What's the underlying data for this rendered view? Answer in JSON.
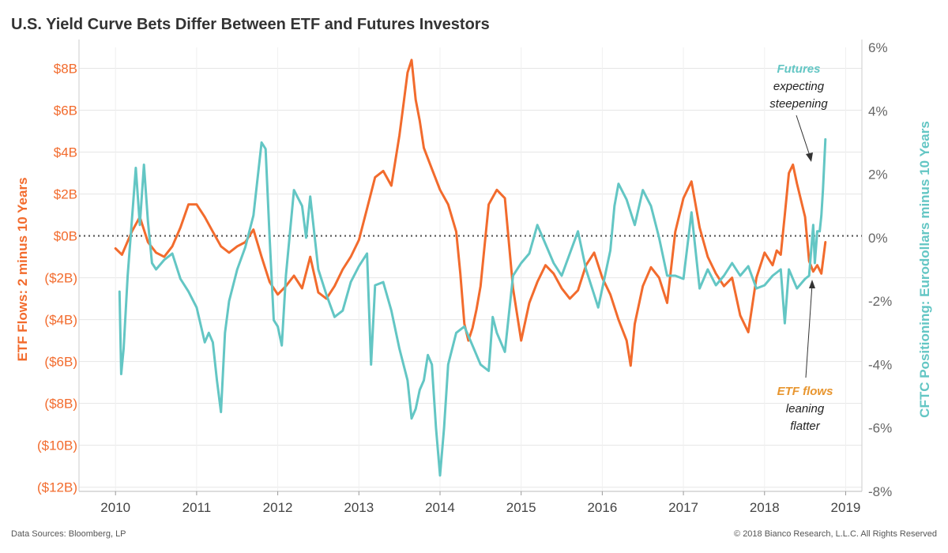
{
  "title": "U.S. Yield Curve Bets Differ Between ETF and Futures Investors",
  "footer": {
    "sources": "Data Sources: Bloomberg, LP",
    "copyright": "© 2018 Bianco Research, L.L.C. All Rights Reserved"
  },
  "colors": {
    "etf": "#f26b2d",
    "futures": "#63c6c4",
    "zero_line": "#555555",
    "grid": "#e6e6e6"
  },
  "chart_data": {
    "type": "line",
    "title": "U.S. Yield Curve Bets Differ Between ETF and Futures Investors",
    "xlabel": "",
    "ylabel_left": "ETF Flows: 2 minus 10 Years",
    "ylabel_right": "CFTC Positioning: Eurodollars minus 10 Years",
    "x_ticks": [
      "2010",
      "2011",
      "2012",
      "2013",
      "2014",
      "2015",
      "2016",
      "2017",
      "2018",
      "2019"
    ],
    "xlim": [
      2009.55,
      2019.2
    ],
    "ylim_left": [
      -12.2,
      9.0
    ],
    "ylim_right": [
      -8.0,
      6.0
    ],
    "left_ticks": [
      {
        "v": 8,
        "label": "$8B"
      },
      {
        "v": 6,
        "label": "$6B"
      },
      {
        "v": 4,
        "label": "$4B"
      },
      {
        "v": 2,
        "label": "$2B"
      },
      {
        "v": 0,
        "label": "$0B"
      },
      {
        "v": -2,
        "label": "($2B)"
      },
      {
        "v": -4,
        "label": "($4B)"
      },
      {
        "v": -6,
        "label": "($6B)"
      },
      {
        "v": -8,
        "label": "($8B)"
      },
      {
        "v": -10,
        "label": "($10B)"
      },
      {
        "v": -12,
        "label": "($12B)"
      }
    ],
    "right_ticks": [
      {
        "v": 6,
        "label": "6%"
      },
      {
        "v": 4,
        "label": "4%"
      },
      {
        "v": 2,
        "label": "2%"
      },
      {
        "v": 0,
        "label": "0%"
      },
      {
        "v": -2,
        "label": "-2%"
      },
      {
        "v": -4,
        "label": "-4%"
      },
      {
        "v": -6,
        "label": "-6%"
      },
      {
        "v": -8,
        "label": "-8%"
      }
    ],
    "grid": true,
    "series": [
      {
        "name": "ETF flows",
        "axis": "left",
        "x": [
          2010.0,
          2010.08,
          2010.2,
          2010.3,
          2010.4,
          2010.5,
          2010.6,
          2010.7,
          2010.8,
          2010.9,
          2011.0,
          2011.1,
          2011.2,
          2011.3,
          2011.4,
          2011.5,
          2011.6,
          2011.7,
          2011.8,
          2011.9,
          2012.0,
          2012.1,
          2012.2,
          2012.3,
          2012.4,
          2012.5,
          2012.6,
          2012.7,
          2012.8,
          2012.9,
          2013.0,
          2013.1,
          2013.2,
          2013.3,
          2013.4,
          2013.5,
          2013.55,
          2013.6,
          2013.65,
          2013.7,
          2013.75,
          2013.8,
          2013.9,
          2014.0,
          2014.1,
          2014.2,
          2014.25,
          2014.3,
          2014.35,
          2014.4,
          2014.45,
          2014.5,
          2014.6,
          2014.7,
          2014.8,
          2014.9,
          2015.0,
          2015.1,
          2015.2,
          2015.3,
          2015.4,
          2015.5,
          2015.6,
          2015.7,
          2015.8,
          2015.9,
          2016.0,
          2016.1,
          2016.2,
          2016.3,
          2016.35,
          2016.4,
          2016.5,
          2016.6,
          2016.7,
          2016.8,
          2016.9,
          2017.0,
          2017.1,
          2017.2,
          2017.3,
          2017.4,
          2017.5,
          2017.6,
          2017.7,
          2017.8,
          2017.9,
          2018.0,
          2018.1,
          2018.15,
          2018.2,
          2018.25,
          2018.3,
          2018.35,
          2018.4,
          2018.5,
          2018.55,
          2018.6,
          2018.65,
          2018.7,
          2018.75
        ],
        "values": [
          -0.6,
          -0.9,
          0.2,
          0.9,
          -0.3,
          -0.8,
          -1.0,
          -0.5,
          0.4,
          1.5,
          1.5,
          0.9,
          0.2,
          -0.5,
          -0.8,
          -0.5,
          -0.3,
          0.3,
          -1.0,
          -2.2,
          -2.8,
          -2.4,
          -1.9,
          -2.5,
          -1.0,
          -2.7,
          -3.0,
          -2.4,
          -1.6,
          -1.0,
          -0.2,
          1.3,
          2.8,
          3.1,
          2.4,
          4.8,
          6.3,
          7.8,
          8.4,
          6.5,
          5.5,
          4.2,
          3.2,
          2.2,
          1.5,
          0.2,
          -1.8,
          -4.2,
          -5.0,
          -4.4,
          -3.5,
          -2.4,
          1.5,
          2.2,
          1.8,
          -2.5,
          -5.0,
          -3.2,
          -2.2,
          -1.4,
          -1.8,
          -2.5,
          -3.0,
          -2.6,
          -1.4,
          -0.8,
          -2.0,
          -2.8,
          -4.0,
          -5.0,
          -6.2,
          -4.2,
          -2.4,
          -1.5,
          -2.0,
          -3.2,
          0.2,
          1.8,
          2.6,
          0.4,
          -1.0,
          -1.8,
          -2.4,
          -2.0,
          -3.8,
          -4.6,
          -2.0,
          -0.8,
          -1.4,
          -0.7,
          -0.9,
          1.0,
          3.0,
          3.4,
          2.5,
          0.9,
          -1.2,
          -1.7,
          -1.4,
          -1.8,
          -0.3
        ]
      },
      {
        "name": "Futures",
        "axis": "right",
        "x": [
          2010.05,
          2010.07,
          2010.1,
          2010.15,
          2010.2,
          2010.25,
          2010.3,
          2010.35,
          2010.4,
          2010.45,
          2010.5,
          2010.6,
          2010.7,
          2010.8,
          2010.9,
          2011.0,
          2011.1,
          2011.15,
          2011.2,
          2011.25,
          2011.3,
          2011.35,
          2011.4,
          2011.5,
          2011.6,
          2011.7,
          2011.8,
          2011.85,
          2011.9,
          2011.95,
          2012.0,
          2012.05,
          2012.1,
          2012.2,
          2012.3,
          2012.35,
          2012.4,
          2012.5,
          2012.6,
          2012.7,
          2012.8,
          2012.9,
          2013.0,
          2013.1,
          2013.15,
          2013.2,
          2013.3,
          2013.4,
          2013.5,
          2013.6,
          2013.65,
          2013.7,
          2013.75,
          2013.8,
          2013.85,
          2013.9,
          2013.95,
          2014.0,
          2014.05,
          2014.1,
          2014.2,
          2014.3,
          2014.4,
          2014.5,
          2014.6,
          2014.65,
          2014.7,
          2014.8,
          2014.9,
          2015.0,
          2015.1,
          2015.2,
          2015.3,
          2015.4,
          2015.5,
          2015.6,
          2015.7,
          2015.8,
          2015.9,
          2015.95,
          2016.0,
          2016.1,
          2016.15,
          2016.2,
          2016.3,
          2016.4,
          2016.5,
          2016.6,
          2016.7,
          2016.8,
          2016.9,
          2017.0,
          2017.1,
          2017.2,
          2017.3,
          2017.4,
          2017.5,
          2017.6,
          2017.7,
          2017.8,
          2017.9,
          2018.0,
          2018.1,
          2018.2,
          2018.25,
          2018.3,
          2018.4,
          2018.5,
          2018.55,
          2018.6,
          2018.62,
          2018.65,
          2018.68,
          2018.7,
          2018.72,
          2018.75
        ],
        "values": [
          -1.7,
          -4.3,
          -3.5,
          -1.2,
          0.5,
          2.2,
          0.4,
          2.3,
          0.5,
          -0.8,
          -1.0,
          -0.7,
          -0.5,
          -1.3,
          -1.7,
          -2.2,
          -3.3,
          -3.0,
          -3.3,
          -4.5,
          -5.5,
          -3.0,
          -2.0,
          -1.0,
          -0.3,
          0.7,
          3.0,
          2.8,
          0.0,
          -2.6,
          -2.8,
          -3.4,
          -1.2,
          1.5,
          1.0,
          0.0,
          1.3,
          -1.0,
          -1.8,
          -2.5,
          -2.3,
          -1.4,
          -0.9,
          -0.5,
          -4.0,
          -1.5,
          -1.4,
          -2.3,
          -3.5,
          -4.5,
          -5.7,
          -5.4,
          -4.8,
          -4.5,
          -3.7,
          -4.0,
          -6.0,
          -7.5,
          -6.0,
          -4.0,
          -3.0,
          -2.8,
          -3.4,
          -4.0,
          -4.2,
          -2.5,
          -3.0,
          -3.6,
          -1.2,
          -0.8,
          -0.5,
          0.4,
          -0.2,
          -0.8,
          -1.2,
          -0.5,
          0.2,
          -1.0,
          -1.8,
          -2.2,
          -1.6,
          -0.4,
          1.0,
          1.7,
          1.2,
          0.4,
          1.5,
          1.0,
          0.0,
          -1.2,
          -1.2,
          -1.3,
          0.8,
          -1.6,
          -1.0,
          -1.5,
          -1.2,
          -0.8,
          -1.2,
          -0.9,
          -1.6,
          -1.5,
          -1.2,
          -1.0,
          -2.7,
          -1.0,
          -1.6,
          -1.3,
          -1.2,
          0.4,
          -0.8,
          0.2,
          0.2,
          0.7,
          1.5,
          3.1
        ]
      }
    ],
    "annotations": [
      {
        "label_emph": "Futures",
        "label_rest": [
          "expecting",
          "steepening"
        ]
      },
      {
        "label_emph": "ETF flows",
        "label_rest": [
          "leaning",
          "flatter"
        ]
      }
    ]
  }
}
